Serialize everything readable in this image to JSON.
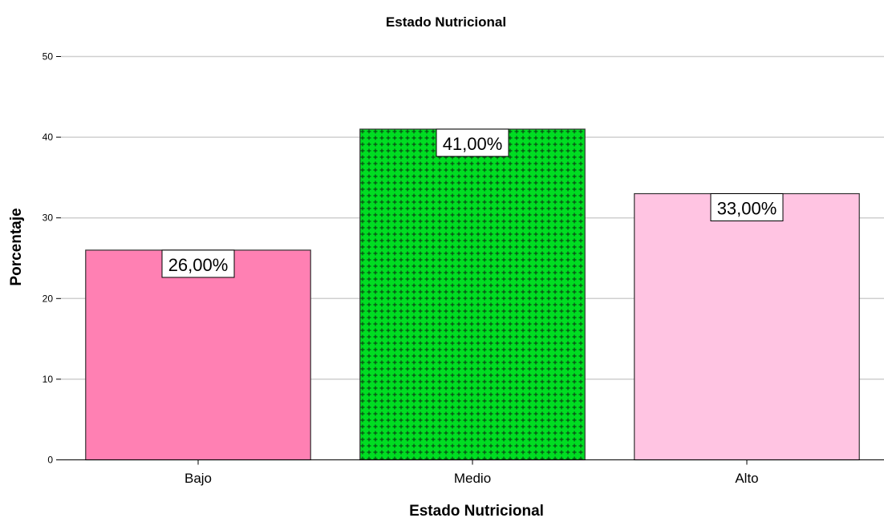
{
  "chart_data": {
    "type": "bar",
    "title": "Estado Nutricional",
    "xlabel": "Estado Nutricional",
    "ylabel": "Porcentaje",
    "categories": [
      "Bajo",
      "Medio",
      "Alto"
    ],
    "values": [
      26,
      41,
      33
    ],
    "data_labels": [
      "26,00%",
      "41,00%",
      "33,00%"
    ],
    "bar_colors": [
      "#ff80b3",
      "#00dd22",
      "#ffc4e2"
    ],
    "bar_patterns": [
      "none",
      "crosshatch-plus",
      "none"
    ],
    "ylim": [
      0,
      50
    ],
    "yticks": [
      0,
      10,
      20,
      30,
      40,
      50
    ],
    "grid": true
  }
}
